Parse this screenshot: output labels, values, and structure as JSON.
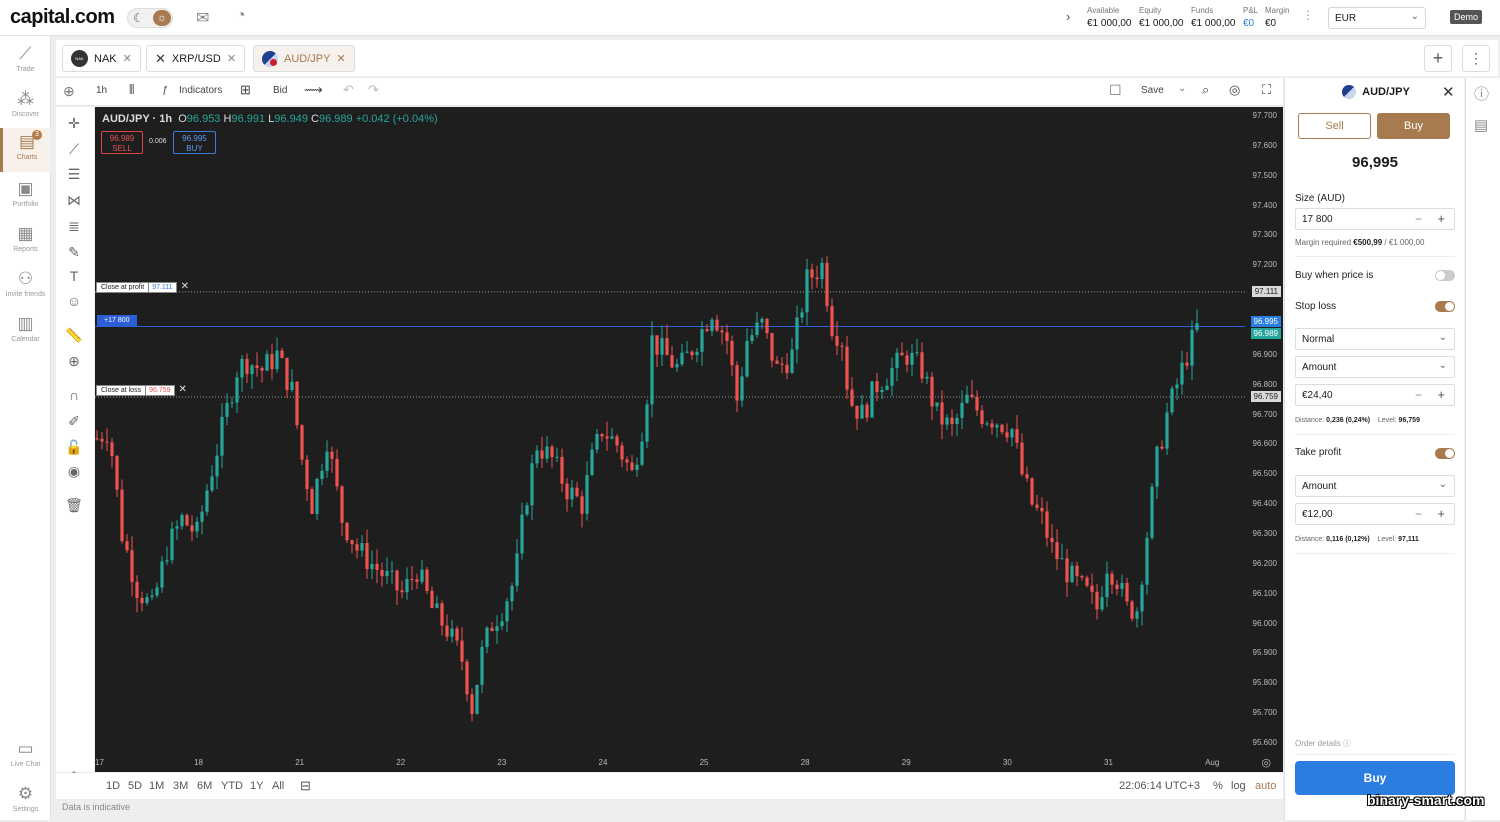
{
  "app": {
    "logo": "capital.com",
    "demo_label": "Demo",
    "currency": "EUR"
  },
  "account": [
    {
      "label": "Available",
      "value": "€1 000,00"
    },
    {
      "label": "Equity",
      "value": "€1 000,00"
    },
    {
      "label": "Funds",
      "value": "€1 000,00"
    },
    {
      "label": "P&L",
      "value": "€0"
    },
    {
      "label": "Margin",
      "value": "€0"
    }
  ],
  "nav": [
    {
      "label": "Trade"
    },
    {
      "label": "Discover"
    },
    {
      "label": "Charts",
      "badge": "3"
    },
    {
      "label": "Portfolio"
    },
    {
      "label": "Reports"
    },
    {
      "label": "Invite friends"
    },
    {
      "label": "Calendar"
    },
    {
      "label": "Live Chat"
    },
    {
      "label": "Settings"
    }
  ],
  "tabs": [
    {
      "label": "NAK"
    },
    {
      "label": "XRP/USD"
    },
    {
      "label": "AUD/JPY"
    }
  ],
  "toolbar": {
    "interval": "1h",
    "indicators": "Indicators",
    "price_type": "Bid",
    "save": "Save"
  },
  "chart_header": {
    "symbol": "AUD/JPY · 1h",
    "o_label": "O",
    "o": "96.953",
    "h_label": "H",
    "h": "96.991",
    "l_label": "L",
    "l": "96.949",
    "c_label": "C",
    "c": "96.989",
    "change": "+0.042 (+0.04%)",
    "sell_price": "96.989",
    "sell_label": "SELL",
    "buy_price": "96.995",
    "buy_label": "BUY",
    "spread": "0.006"
  },
  "positions": {
    "take_profit_label": "Close at profit",
    "take_profit_value": "97.111",
    "stop_loss_label": "Close at loss",
    "stop_loss_value": "96.759",
    "open_label": "+17 800"
  },
  "chart_data": {
    "type": "candlestick",
    "y_ticks": [
      "97.700",
      "97.600",
      "97.500",
      "97.400",
      "97.300",
      "97.200",
      "97.100",
      "97.000",
      "96.900",
      "96.800",
      "96.700",
      "96.600",
      "96.500",
      "96.400",
      "96.300",
      "96.200",
      "96.100",
      "96.000",
      "95.900",
      "95.800",
      "95.700",
      "95.600"
    ],
    "ylim": [
      95.56,
      97.73
    ],
    "x_ticks": [
      "17",
      "18",
      "21",
      "22",
      "23",
      "24",
      "25",
      "28",
      "29",
      "30",
      "31",
      "Aug"
    ],
    "price_tags": [
      {
        "value": "97.111",
        "color": "#d9d9d9"
      },
      {
        "value": "96.995",
        "color": "#2b7de0"
      },
      {
        "value": "96.989",
        "color": "#26a69a"
      },
      {
        "value": "96.759",
        "color": "#d9d9d9"
      }
    ],
    "up_color": "#26a69a",
    "down_color": "#ef5350"
  },
  "bottom": {
    "ranges": [
      "1D",
      "5D",
      "1M",
      "3M",
      "6M",
      "YTD",
      "1Y",
      "All"
    ],
    "time": "22:06:14 UTC+3",
    "percent": "%",
    "log": "log",
    "auto": "auto",
    "note": "Data is indicative"
  },
  "order": {
    "symbol": "AUD/JPY",
    "sell": "Sell",
    "buy": "Buy",
    "price": "96,995",
    "size_label": "Size (AUD)",
    "size_value": "17 800",
    "margin_label": "Margin required",
    "margin_value": "€500,99",
    "margin_total": "/ €1 000,00",
    "buy_when_label": "Buy when price is",
    "stop_loss_label": "Stop loss",
    "sl_type": "Normal",
    "sl_mode": "Amount",
    "sl_value": "€24,40",
    "sl_distance_label": "Distance:",
    "sl_distance": "0,236 (0,24%)",
    "sl_level_label": "Level:",
    "sl_level": "96,759",
    "take_profit_label": "Take profit",
    "tp_mode": "Amount",
    "tp_value": "€12,00",
    "tp_distance_label": "Distance:",
    "tp_distance": "0,116 (0,12%)",
    "tp_level_label": "Level:",
    "tp_level": "97,111",
    "order_details": "Order details",
    "submit": "Buy"
  },
  "watermark": "binary-smart.com"
}
